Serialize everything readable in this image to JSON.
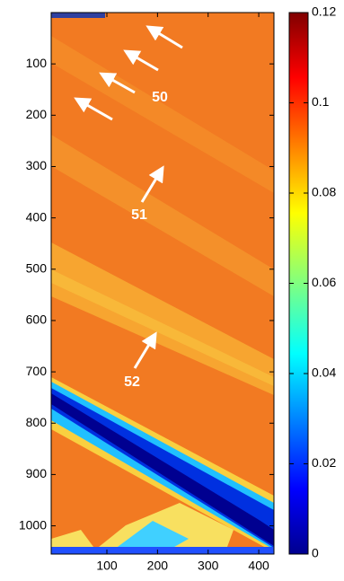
{
  "chart_data": {
    "type": "heatmap",
    "xlim": [
      -10,
      430
    ],
    "xticks": [
      100,
      200,
      300,
      400
    ],
    "ylim": [
      0,
      1055
    ],
    "yticks": [
      100,
      200,
      300,
      400,
      500,
      600,
      700,
      800,
      900,
      1000
    ],
    "clim": [
      0,
      0.12
    ],
    "cticks": [
      0,
      0.02,
      0.04,
      0.06,
      0.08,
      0.1,
      0.12
    ],
    "colormap": "jet",
    "annotations": [
      "50",
      "51",
      "52"
    ]
  }
}
